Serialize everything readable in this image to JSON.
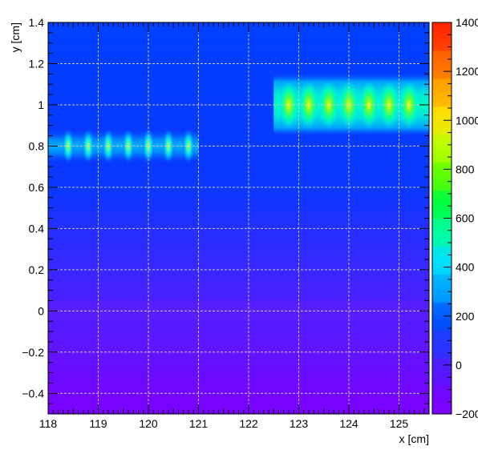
{
  "chart_data": {
    "type": "heatmap",
    "title": "",
    "xlabel": "x [cm]",
    "ylabel": "y [cm]",
    "xlim": [
      118,
      125.6
    ],
    "ylim": [
      -0.5,
      1.4
    ],
    "x_ticks": [
      "118",
      "119",
      "120",
      "121",
      "122",
      "123",
      "124",
      "125"
    ],
    "y_ticks": [
      "−0.4",
      "−0.2",
      "0",
      "0.2",
      "0.4",
      "0.6",
      "0.8",
      "1",
      "1.2",
      "1.4"
    ],
    "grid": true,
    "colorbar": {
      "range": [
        -200,
        1400
      ],
      "ticks": [
        "−200",
        "0",
        "200",
        "400",
        "600",
        "800",
        "1000",
        "1200",
        "1400"
      ],
      "palette": [
        "#8000ff",
        "#6010ff",
        "#3030ff",
        "#0050ff",
        "#00a0ff",
        "#00e0ff",
        "#00ffa0",
        "#00ff40",
        "#60ff00",
        "#c0ff00",
        "#ffe000",
        "#ffa000",
        "#ff6000",
        "#ff2000"
      ]
    },
    "hotspot_rows": [
      {
        "y": 0.8,
        "x_start": 118,
        "x_end": 121,
        "spot_x": [
          118.4,
          118.8,
          119.2,
          119.6,
          120.0,
          120.4,
          120.8
        ],
        "peak": 500
      },
      {
        "y": 1.0,
        "x_start": 122.5,
        "x_end": 125.6,
        "spot_x": [
          122.8,
          123.2,
          123.6,
          124.0,
          124.4,
          124.8,
          125.2
        ],
        "peak": 1000
      }
    ],
    "background": {
      "value_top": 0,
      "value_bottom": -200
    }
  }
}
